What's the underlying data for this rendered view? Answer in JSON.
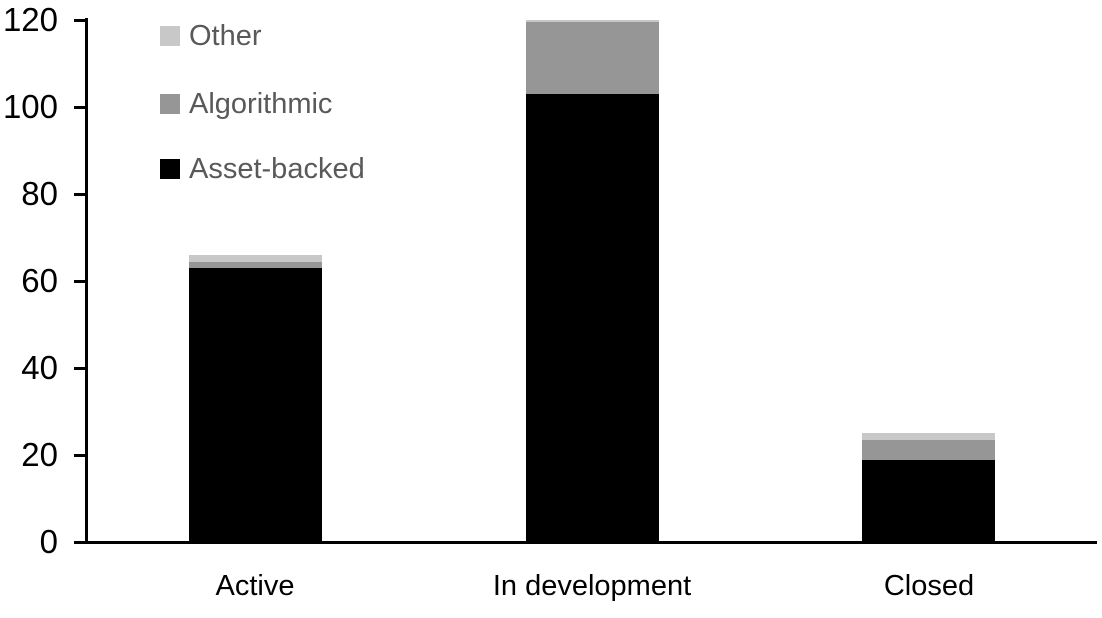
{
  "chart_data": {
    "type": "bar",
    "stacked": true,
    "title": "",
    "xlabel": "",
    "ylabel": "",
    "categories": [
      "Active",
      "In development",
      "Closed"
    ],
    "series": [
      {
        "name": "Asset-backed",
        "color": "#000000",
        "values": [
          63,
          103,
          19
        ]
      },
      {
        "name": "Algorithmic",
        "color": "#969696",
        "values": [
          1.5,
          16.5,
          4.5
        ]
      },
      {
        "name": "Other",
        "color": "#c8c8c8",
        "values": [
          1.5,
          0.5,
          1.5
        ]
      }
    ],
    "stack_totals": [
      66,
      120,
      25
    ],
    "ylim": [
      0,
      120
    ],
    "yticks": [
      0,
      20,
      40,
      60,
      80,
      100,
      120
    ],
    "grid": false,
    "axis_color": "#000000",
    "background_color": "#ffffff",
    "legend": {
      "position": "top-left",
      "order": [
        "Other",
        "Algorithmic",
        "Asset-backed"
      ],
      "text_color": "#595959",
      "labels": {
        "other": "Other",
        "algorithmic": "Algorithmic",
        "asset_backed": "Asset-backed"
      }
    }
  }
}
